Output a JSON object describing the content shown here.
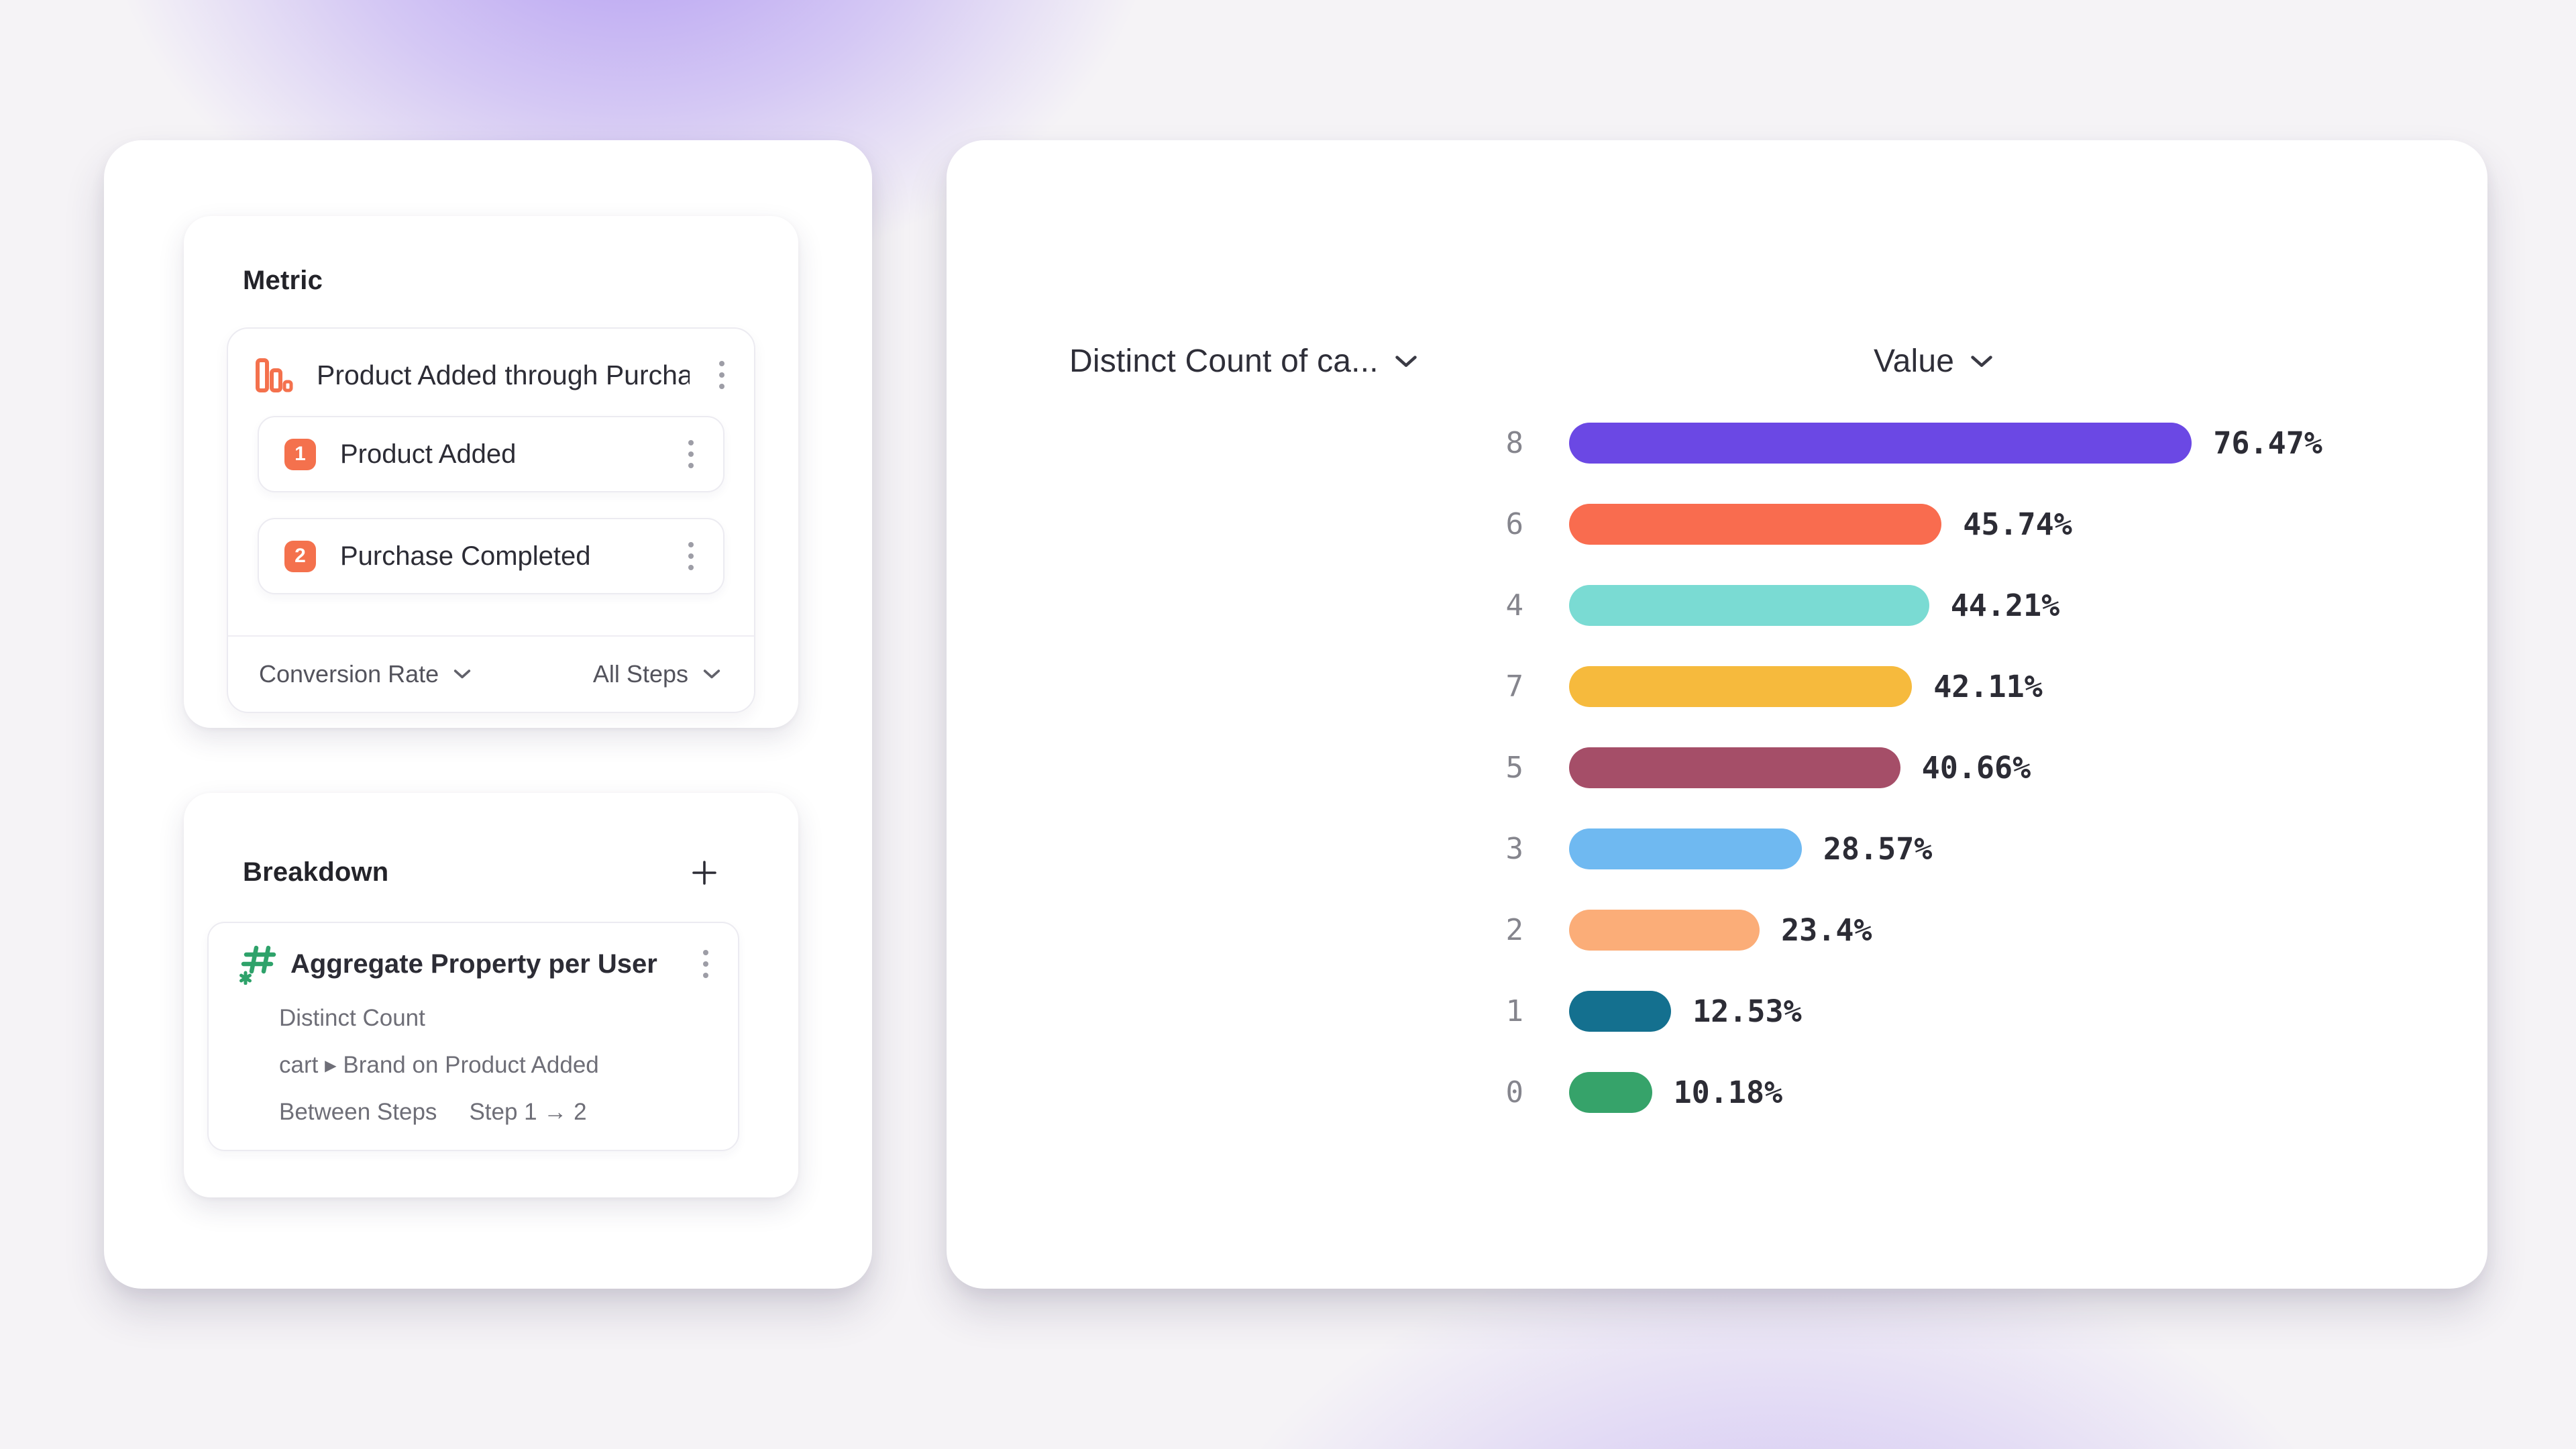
{
  "left_panel": {
    "metric_section": {
      "title": "Metric",
      "funnel": {
        "name": "Product Added through Purcha...",
        "steps": [
          {
            "index": "1",
            "label": "Product Added"
          },
          {
            "index": "2",
            "label": "Purchase Completed"
          }
        ],
        "measure_dropdown": "Conversion Rate",
        "scope_dropdown": "All Steps"
      }
    },
    "breakdown_section": {
      "title": "Breakdown",
      "item": {
        "name": "Aggregate Property per User",
        "aggregation": "Distinct Count",
        "property_path": "cart ▸ Brand on Product Added",
        "between_label": "Between Steps",
        "between_value": "Step 1 → 2"
      }
    }
  },
  "chart": {
    "left_header": "Distinct Count of ca...",
    "right_header": "Value"
  },
  "chart_data": {
    "type": "bar",
    "orientation": "horizontal",
    "categories": [
      "8",
      "6",
      "4",
      "7",
      "5",
      "3",
      "2",
      "1",
      "0"
    ],
    "values": [
      76.47,
      45.74,
      44.21,
      42.11,
      40.66,
      28.57,
      23.4,
      12.53,
      10.18
    ],
    "labels": [
      "76.47%",
      "45.74%",
      "44.21%",
      "42.11%",
      "40.66%",
      "28.57%",
      "23.4%",
      "12.53%",
      "10.18%"
    ],
    "colors": [
      "#6B48E4",
      "#F96C4F",
      "#7ADBD3",
      "#F6BA3D",
      "#A54E68",
      "#6FB9F1",
      "#FBAD78",
      "#14708F",
      "#36A36A"
    ],
    "xlim": [
      0,
      100
    ],
    "value_unit": "%",
    "grid": false,
    "legend": "none",
    "title": ""
  },
  "colors": {
    "accent_orange": "#F4714D",
    "icon_green": "#2EA26A"
  }
}
